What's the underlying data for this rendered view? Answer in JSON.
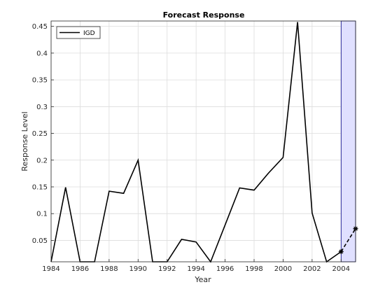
{
  "chart_data": {
    "type": "line",
    "title": "Forecast Response",
    "xlabel": "Year",
    "ylabel": "Response Level",
    "xlim": [
      1984,
      2005
    ],
    "ylim": [
      0.01,
      0.46
    ],
    "xticks": [
      "1984",
      "1986",
      "1988",
      "1990",
      "1992",
      "1994",
      "1996",
      "1998",
      "2000",
      "2002",
      "2004"
    ],
    "yticks": [
      "0.05",
      "0.1",
      "0.15",
      "0.2",
      "0.25",
      "0.3",
      "0.35",
      "0.4",
      "0.45"
    ],
    "grid": true,
    "legend": {
      "position": "top-left",
      "entries": [
        "IGD"
      ]
    },
    "series": [
      {
        "name": "IGD",
        "style": "solid",
        "color": "#000000",
        "x": [
          1984,
          1985,
          1986,
          1987,
          1988,
          1989,
          1990,
          1991,
          1992,
          1993,
          1994,
          1995,
          1996,
          1997,
          1998,
          1999,
          2000,
          2001,
          2002,
          2003,
          2004
        ],
        "y": [
          0.01,
          0.149,
          0.01,
          0.01,
          0.142,
          0.138,
          0.2,
          0.01,
          0.01,
          0.052,
          0.047,
          0.01,
          0.079,
          0.148,
          0.144,
          0.176,
          0.205,
          0.458,
          0.101,
          0.01,
          0.029
        ]
      },
      {
        "style": "dashed",
        "color": "#000000",
        "markers": "star",
        "x": [
          2004,
          2005
        ],
        "y": [
          0.029,
          0.072
        ]
      }
    ],
    "forecast_region": {
      "x": [
        2004,
        2005
      ],
      "fill": "#e0e0ff",
      "stroke": "#000080"
    }
  }
}
